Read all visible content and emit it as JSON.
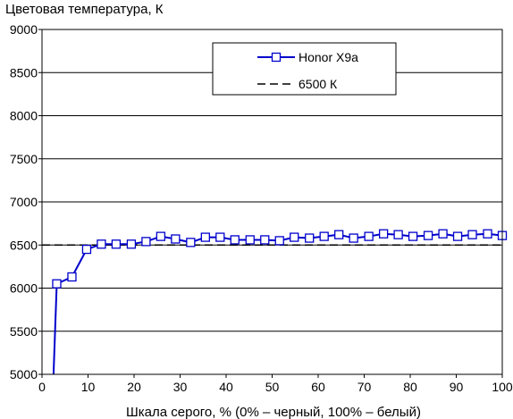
{
  "chart_data": {
    "type": "line",
    "ylabel": "Цветовая температура, К",
    "xlabel": "Шкала серого, % (0% – черный, 100% – белый)",
    "xlim": [
      0,
      100
    ],
    "ylim": [
      5000,
      9000
    ],
    "x_ticks": [
      0,
      10,
      20,
      30,
      40,
      50,
      60,
      70,
      80,
      90,
      100
    ],
    "y_ticks": [
      5000,
      5500,
      6000,
      6500,
      7000,
      7500,
      8000,
      8500,
      9000
    ],
    "grid": "horizontal",
    "legend_position": "top-right",
    "series": [
      {
        "name": "Honor X9a",
        "color": "#0000cc",
        "marker": "square",
        "x": [
          2.5,
          3.2,
          6.5,
          9.7,
          12.9,
          16.1,
          19.4,
          22.6,
          25.8,
          29.0,
          32.3,
          35.5,
          38.7,
          41.9,
          45.2,
          48.4,
          51.6,
          54.8,
          58.1,
          61.3,
          64.5,
          67.7,
          71.0,
          74.2,
          77.4,
          80.6,
          83.9,
          87.1,
          90.3,
          93.5,
          96.8,
          100.0
        ],
        "y": [
          5000,
          6050,
          6130,
          6450,
          6510,
          6510,
          6510,
          6540,
          6600,
          6570,
          6530,
          6590,
          6590,
          6560,
          6560,
          6560,
          6550,
          6590,
          6580,
          6600,
          6620,
          6580,
          6600,
          6630,
          6620,
          6600,
          6610,
          6630,
          6600,
          6620,
          6630,
          6610
        ]
      },
      {
        "name": "6500 К",
        "color": "#000000",
        "style": "dashed",
        "x": [
          0,
          100
        ],
        "y": [
          6500,
          6500
        ]
      }
    ]
  }
}
